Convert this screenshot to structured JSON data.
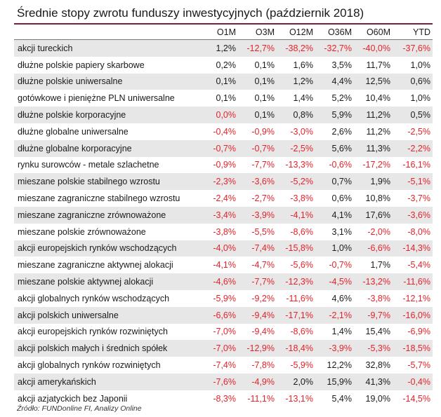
{
  "title": "Średnie stopy zwrotu funduszy inwestycyjnych (październik 2018)",
  "columns": [
    "",
    "O1M",
    "O3M",
    "O12M",
    "O36M",
    "O60M",
    "YTD"
  ],
  "rows": [
    {
      "name": "akcji tureckich",
      "values": [
        "1,2%",
        "-12,7%",
        "-38,2%",
        "-32,7%",
        "-40,0%",
        "-37,6%"
      ]
    },
    {
      "name": "dłużne polskie papiery skarbowe",
      "values": [
        "0,2%",
        "0,1%",
        "1,6%",
        "3,5%",
        "11,7%",
        "1,0%"
      ]
    },
    {
      "name": "dłużne polskie uniwersalne",
      "values": [
        "0,1%",
        "0,1%",
        "1,2%",
        "4,4%",
        "12,5%",
        "0,6%"
      ]
    },
    {
      "name": "gotówkowe i pieniężne PLN uniwersalne",
      "values": [
        "0,1%",
        "0,1%",
        "1,4%",
        "5,2%",
        "10,4%",
        "1,0%"
      ]
    },
    {
      "name": "dłużne polskie korporacyjne",
      "values": [
        "0,0%",
        "0,1%",
        "0,8%",
        "5,9%",
        "11,2%",
        "0,5%"
      ]
    },
    {
      "name": "dłużne globalne uniwersalne",
      "values": [
        "-0,4%",
        "-0,9%",
        "-3,0%",
        "2,6%",
        "11,2%",
        "-2,5%"
      ]
    },
    {
      "name": "dłużne globalne korporacyjne",
      "values": [
        "-0,7%",
        "-0,7%",
        "-2,5%",
        "5,6%",
        "11,3%",
        "-2,2%"
      ]
    },
    {
      "name": "rynku surowców - metale szlachetne",
      "values": [
        "-0,9%",
        "-7,7%",
        "-13,3%",
        "-0,6%",
        "-17,2%",
        "-16,1%"
      ]
    },
    {
      "name": "mieszane polskie stabilnego wzrostu",
      "values": [
        "-2,3%",
        "-3,6%",
        "-5,2%",
        "0,7%",
        "1,9%",
        "-5,1%"
      ]
    },
    {
      "name": "mieszane zagraniczne stabilnego wzrostu",
      "values": [
        "-2,4%",
        "-2,7%",
        "-3,8%",
        "0,6%",
        "10,8%",
        "-3,7%"
      ]
    },
    {
      "name": "mieszane zagraniczne zrównoważone",
      "values": [
        "-3,4%",
        "-3,9%",
        "-4,1%",
        "4,1%",
        "17,6%",
        "-3,6%"
      ]
    },
    {
      "name": "mieszane polskie zrównoważone",
      "values": [
        "-3,8%",
        "-5,5%",
        "-8,6%",
        "3,1%",
        "-2,0%",
        "-8,0%"
      ]
    },
    {
      "name": "akcji europejskich rynków wschodzących",
      "values": [
        "-4,0%",
        "-7,4%",
        "-15,8%",
        "1,0%",
        "-6,6%",
        "-14,3%"
      ]
    },
    {
      "name": "mieszane zagraniczne aktywnej alokacji",
      "values": [
        "-4,1%",
        "-4,7%",
        "-5,6%",
        "-0,7%",
        "1,7%",
        "-5,4%"
      ]
    },
    {
      "name": "mieszane polskie aktywnej alokacji",
      "values": [
        "-4,6%",
        "-7,7%",
        "-12,3%",
        "-4,5%",
        "-13,2%",
        "-11,6%"
      ]
    },
    {
      "name": "akcji globalnych rynków wschodzących",
      "values": [
        "-5,9%",
        "-9,2%",
        "-11,6%",
        "4,6%",
        "-3,8%",
        "-12,1%"
      ]
    },
    {
      "name": "akcji polskich uniwersalne",
      "values": [
        "-6,6%",
        "-9,4%",
        "-17,1%",
        "-2,1%",
        "-9,7%",
        "-16,0%"
      ]
    },
    {
      "name": "akcji europejskich rynków rozwiniętych",
      "values": [
        "-7,0%",
        "-9,4%",
        "-8,6%",
        "1,4%",
        "15,4%",
        "-6,9%"
      ]
    },
    {
      "name": "akcji polskich małych i średnich spółek",
      "values": [
        "-7,0%",
        "-12,9%",
        "-18,4%",
        "-3,9%",
        "-5,3%",
        "-18,5%"
      ]
    },
    {
      "name": "akcji globalnych rynków rozwiniętych",
      "values": [
        "-7,4%",
        "-7,8%",
        "-5,9%",
        "12,2%",
        "32,8%",
        "-5,7%"
      ]
    },
    {
      "name": "akcji amerykańskich",
      "values": [
        "-7,6%",
        "-4,9%",
        "2,0%",
        "15,9%",
        "41,3%",
        "-0,4%"
      ]
    },
    {
      "name": "akcji azjatyckich bez Japonii",
      "values": [
        "-8,3%",
        "-11,1%",
        "-13,1%",
        "5,4%",
        "19,0%",
        "-14,5%"
      ]
    }
  ],
  "source": "Źródło: FUNDonline FI, Analizy Online",
  "colors": {
    "accent_rule": "#7d1d3f",
    "negative": "#e3232b",
    "zero_highlight": "#e3232b",
    "shade": "#e7e7e7"
  }
}
